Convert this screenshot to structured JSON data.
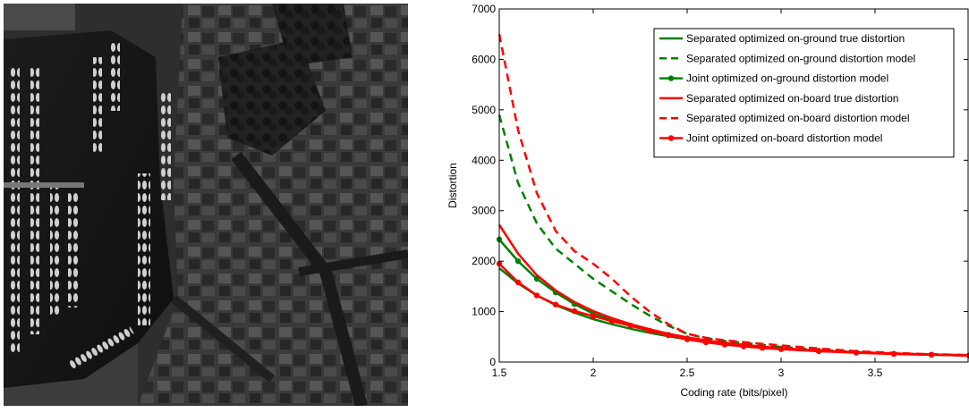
{
  "image_panel": {
    "icon": "aerial-harbor-photo"
  },
  "chart_data": {
    "type": "line",
    "title": "",
    "xlabel": "Coding rate (bits/pixel)",
    "ylabel": "Distortion",
    "xlim": [
      1.5,
      4.0
    ],
    "ylim": [
      0,
      7000
    ],
    "xticks": [
      1.5,
      2,
      2.5,
      3,
      3.5
    ],
    "xtick_labels": [
      "1.5",
      "2",
      "2.5",
      "3",
      "3.5"
    ],
    "yticks": [
      0,
      1000,
      2000,
      3000,
      4000,
      5000,
      6000,
      7000
    ],
    "ytick_labels": [
      "0",
      "1000",
      "2000",
      "3000",
      "4000",
      "5000",
      "6000",
      "7000"
    ],
    "grid": false,
    "legend_position": "top-right",
    "series": [
      {
        "name": "Separated optimized on-ground true distortion",
        "color": "#008000",
        "style": "solid",
        "marker": "none",
        "x": [
          1.5,
          1.6,
          1.7,
          1.8,
          1.9,
          2.0,
          2.1,
          2.2,
          2.3,
          2.4,
          2.5,
          2.6,
          2.7,
          2.8,
          2.9,
          3.0,
          3.2,
          3.4,
          3.6,
          3.8,
          4.0
        ],
        "y": [
          1860,
          1560,
          1320,
          1130,
          980,
          850,
          750,
          660,
          580,
          510,
          450,
          400,
          355,
          320,
          290,
          260,
          220,
          190,
          165,
          145,
          130
        ]
      },
      {
        "name": "Separated optimized on-ground distortion model",
        "color": "#008000",
        "style": "dashed",
        "marker": "none",
        "x": [
          1.5,
          1.6,
          1.7,
          1.8,
          1.9,
          2.0,
          2.1,
          2.2,
          2.3,
          2.4,
          2.5,
          2.6,
          2.7,
          2.8,
          2.9,
          3.0,
          3.2,
          3.4,
          3.6,
          3.8,
          4.0
        ],
        "y": [
          4900,
          3550,
          2750,
          2250,
          1950,
          1650,
          1400,
          1150,
          920,
          720,
          560,
          470,
          420,
          380,
          340,
          300,
          245,
          200,
          170,
          150,
          135
        ]
      },
      {
        "name": "Joint optimized on-ground distortion model",
        "color": "#008000",
        "style": "solid",
        "marker": "dot",
        "x": [
          1.5,
          1.6,
          1.7,
          1.8,
          1.9,
          2.0,
          2.1,
          2.2,
          2.3,
          2.4,
          2.5,
          2.6,
          2.7,
          2.8,
          2.9,
          3.0,
          3.2,
          3.4,
          3.6,
          3.8,
          4.0
        ],
        "y": [
          2430,
          2000,
          1650,
          1380,
          1150,
          960,
          830,
          720,
          620,
          540,
          470,
          420,
          375,
          335,
          300,
          270,
          225,
          190,
          165,
          145,
          130
        ]
      },
      {
        "name": "Separated optimized on-board true distortion",
        "color": "#ff0000",
        "style": "solid",
        "marker": "none",
        "x": [
          1.5,
          1.6,
          1.7,
          1.8,
          1.9,
          2.0,
          2.1,
          2.2,
          2.3,
          2.4,
          2.5,
          2.6,
          2.7,
          2.8,
          2.9,
          3.0,
          3.2,
          3.4,
          3.6,
          3.8,
          4.0
        ],
        "y": [
          2720,
          2150,
          1720,
          1420,
          1190,
          1010,
          870,
          750,
          650,
          560,
          490,
          430,
          380,
          340,
          305,
          275,
          230,
          195,
          170,
          150,
          135
        ]
      },
      {
        "name": "Separated optimized on-board distortion model",
        "color": "#ff0000",
        "style": "dashed",
        "marker": "none",
        "x": [
          1.5,
          1.6,
          1.7,
          1.8,
          1.9,
          2.0,
          2.1,
          2.2,
          2.3,
          2.4,
          2.5,
          2.6,
          2.7,
          2.8,
          2.9,
          3.0,
          3.2,
          3.4,
          3.6,
          3.8,
          4.0
        ],
        "y": [
          6500,
          4600,
          3350,
          2600,
          2200,
          1950,
          1650,
          1300,
          1000,
          750,
          560,
          480,
          430,
          395,
          360,
          330,
          270,
          215,
          180,
          155,
          140
        ]
      },
      {
        "name": "Joint optimized on-board distortion model",
        "color": "#ff0000",
        "style": "solid",
        "marker": "dot",
        "x": [
          1.5,
          1.6,
          1.7,
          1.8,
          1.9,
          2.0,
          2.1,
          2.2,
          2.3,
          2.4,
          2.5,
          2.6,
          2.7,
          2.8,
          2.9,
          3.0,
          3.2,
          3.4,
          3.6,
          3.8,
          4.0
        ],
        "y": [
          1950,
          1580,
          1320,
          1140,
          1010,
          910,
          810,
          720,
          620,
          530,
          450,
          390,
          345,
          310,
          280,
          255,
          215,
          185,
          160,
          145,
          130
        ]
      }
    ]
  }
}
